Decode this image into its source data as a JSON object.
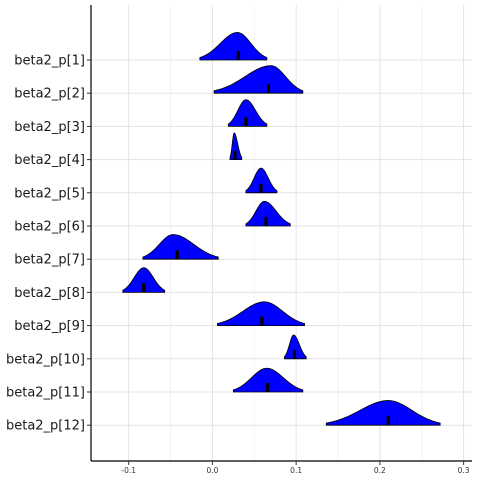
{
  "chart_data": {
    "type": "ridgeline",
    "xlim": [
      -0.145,
      0.31
    ],
    "x_ticks": [
      -0.1,
      0.0,
      0.1,
      0.2,
      0.3
    ],
    "x_tick_labels": [
      "-0.1",
      "0.0",
      "0.1",
      "0.2",
      "0.3"
    ],
    "grid": true,
    "fill_color": "#0000FF",
    "outline_color": "#000000",
    "median_color": "#000000",
    "series": [
      {
        "label": "beta2_p[1]",
        "min": -0.015,
        "max": 0.065,
        "mode": 0.03,
        "median": 0.031,
        "peak": 0.95
      },
      {
        "label": "beta2_p[2]",
        "min": 0.002,
        "max": 0.108,
        "mode": 0.07,
        "median": 0.067,
        "peak": 0.95
      },
      {
        "label": "beta2_p[3]",
        "min": 0.019,
        "max": 0.065,
        "mode": 0.04,
        "median": 0.04,
        "peak": 0.92
      },
      {
        "label": "beta2_p[4]",
        "min": 0.021,
        "max": 0.035,
        "mode": 0.026,
        "median": 0.027,
        "peak": 0.92
      },
      {
        "label": "beta2_p[5]",
        "min": 0.04,
        "max": 0.077,
        "mode": 0.058,
        "median": 0.058,
        "peak": 0.85
      },
      {
        "label": "beta2_p[6]",
        "min": 0.04,
        "max": 0.093,
        "mode": 0.062,
        "median": 0.064,
        "peak": 0.85
      },
      {
        "label": "beta2_p[7]",
        "min": -0.083,
        "max": 0.007,
        "mode": -0.047,
        "median": -0.042,
        "peak": 0.85
      },
      {
        "label": "beta2_p[8]",
        "min": -0.107,
        "max": -0.057,
        "mode": -0.082,
        "median": -0.082,
        "peak": 0.85
      },
      {
        "label": "beta2_p[9]",
        "min": 0.006,
        "max": 0.11,
        "mode": 0.062,
        "median": 0.059,
        "peak": 0.82
      },
      {
        "label": "beta2_p[10]",
        "min": 0.086,
        "max": 0.112,
        "mode": 0.097,
        "median": 0.098,
        "peak": 0.82
      },
      {
        "label": "beta2_p[11]",
        "min": 0.025,
        "max": 0.108,
        "mode": 0.065,
        "median": 0.066,
        "peak": 0.82
      },
      {
        "label": "beta2_p[12]",
        "min": 0.136,
        "max": 0.272,
        "mode": 0.21,
        "median": 0.21,
        "peak": 0.85
      }
    ]
  }
}
